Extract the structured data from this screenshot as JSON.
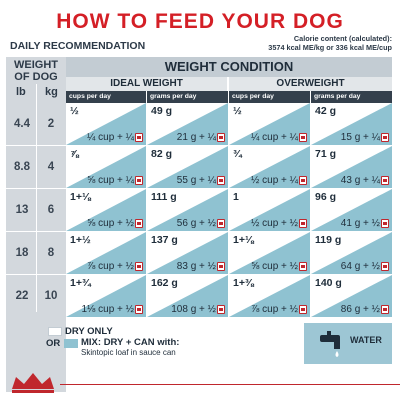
{
  "title": "HOW TO FEED YOUR DOG",
  "daily": "DAILY RECOMMENDATION",
  "calorie": {
    "line1": "Calorie content (calculated):",
    "line2": "3574 kcal ME/kg or 336 kcal ME/cup"
  },
  "weight_of_dog": "WEIGHT OF DOG",
  "units": {
    "lb": "lb",
    "kg": "kg"
  },
  "weight_condition": "WEIGHT CONDITION",
  "ideal": "IDEAL WEIGHT",
  "overweight": "OVERWEIGHT",
  "col_headers": [
    "cups per day",
    "grams per day",
    "cups per day",
    "grams per day"
  ],
  "rows": [
    {
      "lb": "4.4",
      "kg": "2",
      "cells": [
        {
          "dry": "½",
          "mix": "¼ cup + ¼"
        },
        {
          "dry": "49 g",
          "mix": "21 g + ¼"
        },
        {
          "dry": "½",
          "mix": "¼ cup + ¼"
        },
        {
          "dry": "42 g",
          "mix": "15 g + ¼"
        }
      ]
    },
    {
      "lb": "8.8",
      "kg": "4",
      "cells": [
        {
          "dry": "⅞",
          "mix": "⅝ cup + ¼"
        },
        {
          "dry": "82 g",
          "mix": "55 g + ¼"
        },
        {
          "dry": "¾",
          "mix": "½ cup + ¼"
        },
        {
          "dry": "71 g",
          "mix": "43 g + ¼"
        }
      ]
    },
    {
      "lb": "13",
      "kg": "6",
      "cells": [
        {
          "dry": "1+⅛",
          "mix": "⅝ cup + ½"
        },
        {
          "dry": "111 g",
          "mix": "56 g + ½"
        },
        {
          "dry": "1",
          "mix": "½ cup + ½"
        },
        {
          "dry": "96 g",
          "mix": "41 g + ½"
        }
      ]
    },
    {
      "lb": "18",
      "kg": "8",
      "cells": [
        {
          "dry": "1+½",
          "mix": "⅞ cup + ½"
        },
        {
          "dry": "137 g",
          "mix": "83 g + ½"
        },
        {
          "dry": "1+⅛",
          "mix": "⅝ cup + ½"
        },
        {
          "dry": "119 g",
          "mix": "64 g + ½"
        }
      ]
    },
    {
      "lb": "22",
      "kg": "10",
      "cells": [
        {
          "dry": "1+¾",
          "mix": "1⅛ cup + ½"
        },
        {
          "dry": "162 g",
          "mix": "108 g + ½"
        },
        {
          "dry": "1+⅜",
          "mix": "⅞ cup + ½"
        },
        {
          "dry": "140 g",
          "mix": "86 g + ½"
        }
      ]
    }
  ],
  "legend": {
    "dry_only": "DRY ONLY",
    "or": "OR",
    "mix_label": "MIX: DRY + CAN with:",
    "mix_detail": "Skintopic loaf in sauce can",
    "water": "WATER"
  },
  "colors": {
    "title_red": "#d41f26",
    "mix_blue": "#8fc2d1",
    "dark_header": "#34404c",
    "grey_band": "#d3d8dd"
  },
  "icons": [
    "can-icon",
    "water-tap-icon",
    "royal-canin-crown-logo"
  ]
}
